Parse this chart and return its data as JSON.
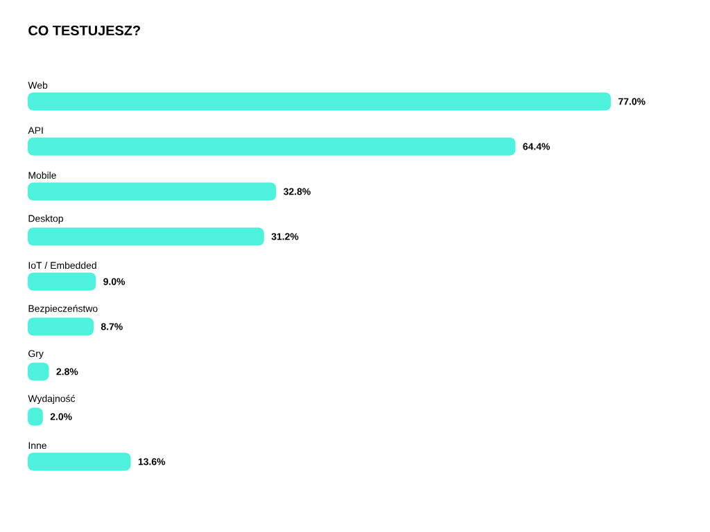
{
  "chart_data": {
    "type": "bar",
    "orientation": "horizontal",
    "title": "CO TESTUJESZ?",
    "categories": [
      "Web",
      "API",
      "Mobile",
      "Desktop",
      "IoT / Embedded",
      "Bezpieczeństwo",
      "Gry",
      "Wydajność",
      "Inne"
    ],
    "values": [
      77.0,
      64.4,
      32.8,
      31.2,
      9.0,
      8.7,
      2.8,
      2.0,
      13.6
    ],
    "value_labels": [
      "77.0%",
      "64.4%",
      "32.8%",
      "31.2%",
      "9.0%",
      "8.7%",
      "2.8%",
      "2.0%",
      "13.6%"
    ],
    "color": "#4ef2dc"
  }
}
